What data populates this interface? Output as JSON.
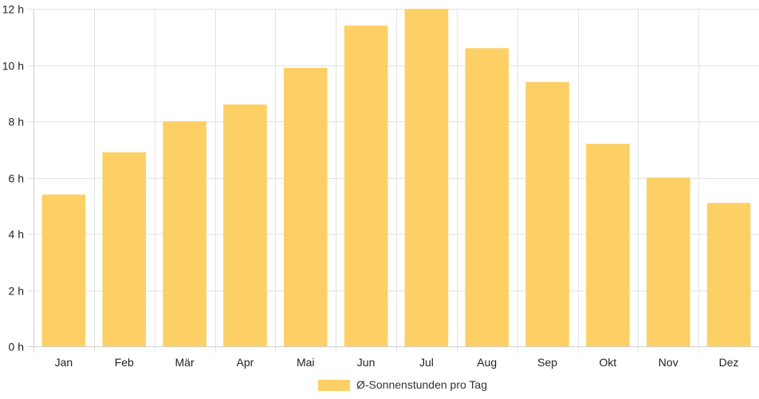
{
  "chart_data": {
    "type": "bar",
    "categories": [
      "Jan",
      "Feb",
      "Mär",
      "Apr",
      "Mai",
      "Jun",
      "Jul",
      "Aug",
      "Sep",
      "Okt",
      "Nov",
      "Dez"
    ],
    "series": [
      {
        "name": "Ø-Sonnenstunden pro Tag",
        "values": [
          5.4,
          6.9,
          8.0,
          8.6,
          9.9,
          11.4,
          12.0,
          10.6,
          9.4,
          7.2,
          6.0,
          5.1
        ],
        "color": "#fdd066"
      }
    ],
    "ylim": [
      0,
      12
    ],
    "yticks": [
      0,
      2,
      4,
      6,
      8,
      10,
      12
    ],
    "ytick_labels": [
      "0 h",
      "2 h",
      "4 h",
      "6 h",
      "8 h",
      "10 h",
      "12 h"
    ],
    "grid": true,
    "legend_position": "bottom-center",
    "gridline_color": "#e3e3e3",
    "title": "",
    "xlabel": "",
    "ylabel": ""
  }
}
